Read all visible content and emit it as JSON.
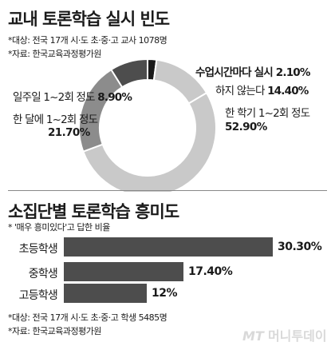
{
  "donut_section": {
    "title": "교내 토론학습 실시 빈도",
    "notes": [
      "*대상: 전국 17개 시·도  초·중·고 교사 1078명",
      "*자료: 한국교육과정평가원"
    ]
  },
  "bar_section": {
    "title": "소집단별 토론학습 흥미도",
    "subtitle": "* '매우 흥미있다'고 답한 비율",
    "notes": [
      "*대상: 전국 17개 시·도  초·중·고 학생 5485명",
      "*자료: 한국교육과정평가원"
    ]
  },
  "brand": {
    "logo_text": "MT",
    "name": "머니투데이"
  },
  "colors": {
    "dark": "#4d4d4d",
    "mid": "#8c8c8c",
    "light": "#c9c9c9",
    "black": "#1a1a1a"
  },
  "chart_data": [
    {
      "type": "pie",
      "title": "교내 토론학습 실시 빈도",
      "slices": [
        {
          "label": "수업시간마다 실시",
          "value": 2.1,
          "value_label": "2.10%",
          "color": "#1a1a1a"
        },
        {
          "label": "하지 않는다",
          "value": 14.4,
          "value_label": "14.40%",
          "color": "#c9c9c9"
        },
        {
          "label": "한 학기 1~2회 정도",
          "value": 52.9,
          "value_label": "52.90%",
          "color": "#c9c9c9"
        },
        {
          "label": "한 달에 1~2회 정도",
          "value": 21.7,
          "value_label": "21.70%",
          "color": "#8c8c8c"
        },
        {
          "label": "일주일 1~2회 정도",
          "value": 8.9,
          "value_label": "8.90%",
          "color": "#4d4d4d"
        }
      ]
    },
    {
      "type": "bar",
      "title": "소집단별 토론학습 흥미도",
      "categories": [
        "초등학생",
        "중학생",
        "고등학생"
      ],
      "values": [
        30.3,
        17.4,
        12
      ],
      "value_labels": [
        "30.30%",
        "17.40%",
        "12%"
      ]
    }
  ]
}
